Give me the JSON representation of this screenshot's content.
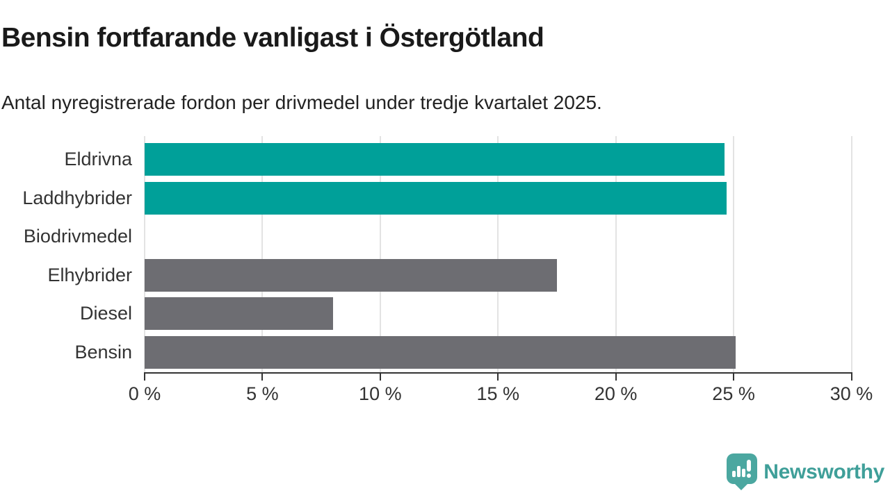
{
  "header": {
    "title": "Bensin fortfarande vanligast i Östergötland",
    "subtitle": "Antal nyregistrerade fordon per drivmedel under tredje kvartalet 2025."
  },
  "chart_data": {
    "type": "bar",
    "orientation": "horizontal",
    "title": "Bensin fortfarande vanligast i Östergötland",
    "subtitle": "Antal nyregistrerade fordon per drivmedel under tredje kvartalet 2025.",
    "categories": [
      "Eldrivna",
      "Laddhybrider",
      "Biodrivmedel",
      "Elhybrider",
      "Diesel",
      "Bensin"
    ],
    "values": [
      24.6,
      24.7,
      0,
      17.5,
      8,
      25.1
    ],
    "bar_colors": [
      "#00a099",
      "#00a099",
      "#6d6d72",
      "#6d6d72",
      "#6d6d72",
      "#6d6d72"
    ],
    "highlight_color": "#00a099",
    "default_color": "#6d6d72",
    "xlabel": "",
    "ylabel": "",
    "xlim": [
      0,
      30
    ],
    "x_ticks": [
      0,
      5,
      10,
      15,
      20,
      25,
      30
    ],
    "x_tick_labels": [
      "0 %",
      "5 %",
      "10 %",
      "15 %",
      "20 %",
      "25 %",
      "30 %"
    ],
    "grid": "vertical-gridlines-on",
    "legend": "none",
    "unit": "percent"
  },
  "footer": {
    "brand": "Newsworthy",
    "brand_color": "#3f9f99",
    "logo_icon_color": "#4ba7a0"
  },
  "colors": {
    "background": "#ffffff",
    "title_text": "#1a1a1a",
    "label_text": "#333333",
    "axis": "#333333",
    "gridline": "#e3e3e3"
  }
}
